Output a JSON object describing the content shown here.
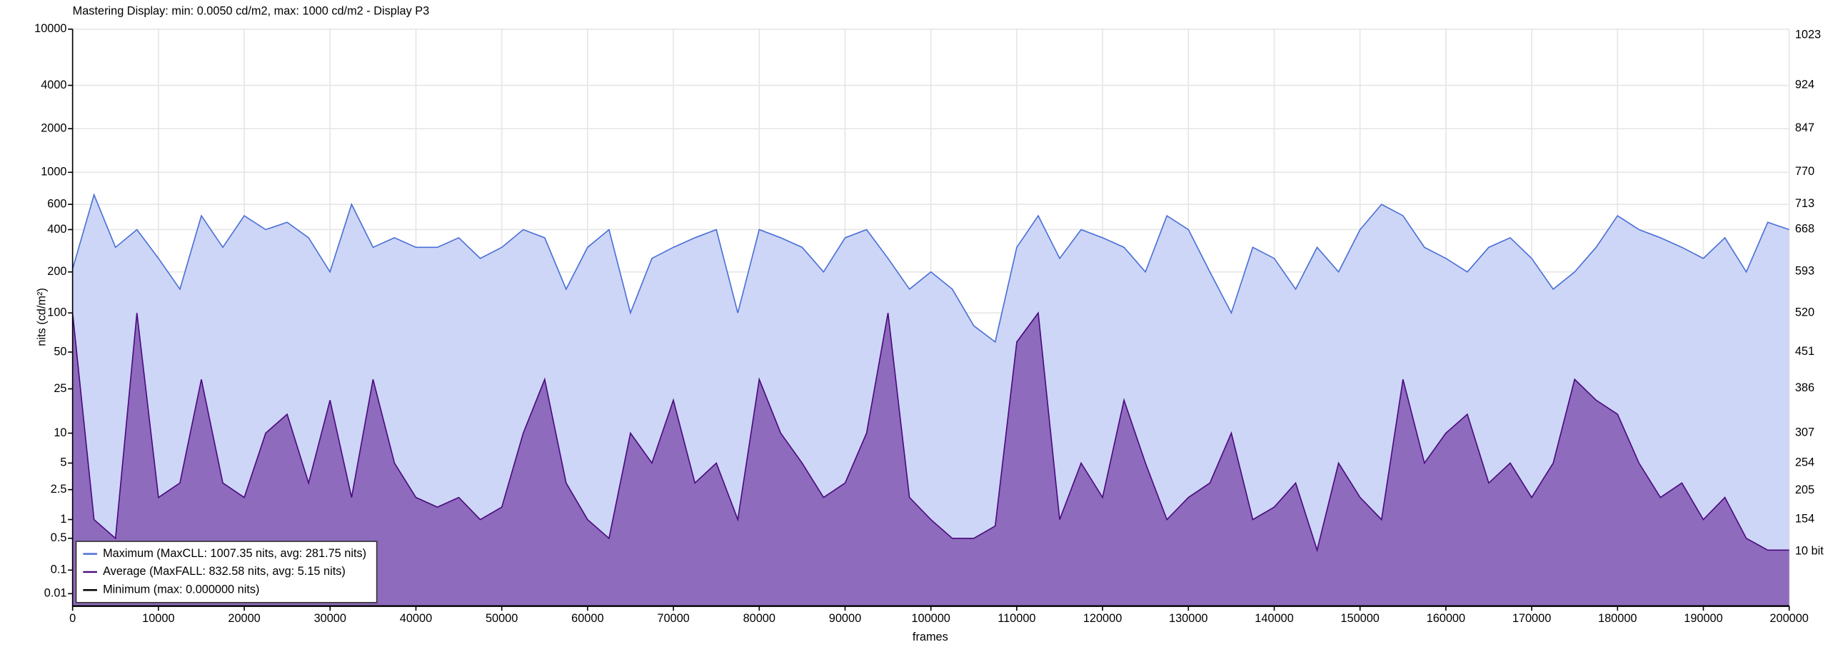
{
  "chart_data": {
    "type": "area",
    "title": "Mastering Display: min: 0.0050 cd/m2, max: 1000 cd/m2 - Display P3",
    "xlabel": "frames",
    "ylabel": "nits (cd/m²)",
    "y2label": "10 bit",
    "yscale": "pq",
    "grid": true,
    "legend": "lower left",
    "xlim": [
      0,
      200000
    ],
    "xticks": [
      0,
      10000,
      20000,
      30000,
      40000,
      50000,
      60000,
      70000,
      80000,
      90000,
      100000,
      110000,
      120000,
      130000,
      140000,
      150000,
      160000,
      170000,
      180000,
      190000,
      200000
    ],
    "ylim": [
      0,
      10000
    ],
    "yticks": [
      0.01,
      0.1,
      0.5,
      1,
      2.5,
      5,
      10,
      25,
      50,
      100,
      200,
      400,
      600,
      1000,
      2000,
      4000,
      10000
    ],
    "y2lim": [
      0,
      1023
    ],
    "y2ticks": [
      154,
      205,
      254,
      307,
      386,
      451,
      520,
      593,
      668,
      713,
      770,
      847,
      924,
      1023
    ],
    "x": [
      0,
      2500,
      5000,
      7500,
      10000,
      12500,
      15000,
      17500,
      20000,
      22500,
      25000,
      27500,
      30000,
      32500,
      35000,
      37500,
      40000,
      42500,
      45000,
      47500,
      50000,
      52500,
      55000,
      57500,
      60000,
      62500,
      65000,
      67500,
      70000,
      72500,
      75000,
      77500,
      80000,
      82500,
      85000,
      87500,
      90000,
      92500,
      95000,
      97500,
      100000,
      102500,
      105000,
      107500,
      110000,
      112500,
      115000,
      117500,
      120000,
      122500,
      125000,
      127500,
      130000,
      132500,
      135000,
      137500,
      140000,
      142500,
      145000,
      147500,
      150000,
      152500,
      155000,
      157500,
      160000,
      162500,
      165000,
      167500,
      170000,
      172500,
      175000,
      177500,
      180000,
      182500,
      185000,
      187500,
      190000,
      192500,
      195000,
      197500,
      200000
    ],
    "series": [
      {
        "name": "Maximum (MaxCLL: 1007.35 nits, avg: 281.75 nits)",
        "color": "#4b6fd6",
        "fill": "#cdd6f6",
        "values": [
          210,
          700,
          300,
          400,
          250,
          150,
          500,
          300,
          500,
          400,
          450,
          350,
          200,
          600,
          300,
          350,
          300,
          300,
          350,
          250,
          300,
          400,
          350,
          150,
          300,
          400,
          100,
          250,
          300,
          350,
          400,
          100,
          400,
          350,
          300,
          200,
          350,
          400,
          250,
          150,
          200,
          150,
          80,
          60,
          300,
          500,
          250,
          400,
          350,
          300,
          200,
          500,
          400,
          200,
          100,
          300,
          250,
          150,
          300,
          200,
          400,
          600,
          500,
          300,
          250,
          200,
          300,
          350,
          250,
          150,
          200,
          300,
          500,
          400,
          350,
          300,
          250,
          350,
          200,
          450,
          400
        ]
      },
      {
        "name": "Average (MaxFALL: 832.58 nits, avg: 5.15 nits)",
        "color": "#4b0a7f",
        "fill": "#8e6bbd",
        "values": [
          100,
          1,
          0.5,
          100,
          2,
          3,
          30,
          3,
          2,
          10,
          15,
          3,
          20,
          2,
          30,
          5,
          2,
          1.5,
          2,
          1,
          1.5,
          10,
          30,
          3,
          1,
          0.5,
          10,
          5,
          20,
          3,
          5,
          1,
          30,
          10,
          5,
          2,
          3,
          10,
          100,
          2,
          1,
          0.5,
          0.5,
          0.8,
          60,
          100,
          1,
          5,
          2,
          20,
          5,
          1,
          2,
          3,
          10,
          1,
          1.5,
          3,
          0.3,
          5,
          2,
          1,
          30,
          5,
          10,
          15,
          3,
          5,
          2,
          5,
          30,
          20,
          15,
          5,
          2,
          3,
          1,
          2,
          0.5,
          0.3,
          0.3
        ]
      },
      {
        "name": "Minimum (max: 0.000000 nits)",
        "color": "#000000",
        "values": [
          0,
          0,
          0,
          0,
          0,
          0,
          0,
          0,
          0,
          0,
          0,
          0,
          0,
          0,
          0,
          0,
          0,
          0,
          0,
          0,
          0,
          0,
          0,
          0,
          0,
          0,
          0,
          0,
          0,
          0,
          0,
          0,
          0,
          0,
          0,
          0,
          0,
          0,
          0,
          0,
          0,
          0,
          0,
          0,
          0,
          0,
          0,
          0,
          0,
          0,
          0,
          0,
          0,
          0,
          0,
          0,
          0,
          0,
          0,
          0,
          0,
          0,
          0,
          0,
          0,
          0,
          0,
          0,
          0,
          0,
          0,
          0,
          0,
          0,
          0,
          0,
          0,
          0,
          0,
          0,
          0
        ]
      }
    ]
  }
}
